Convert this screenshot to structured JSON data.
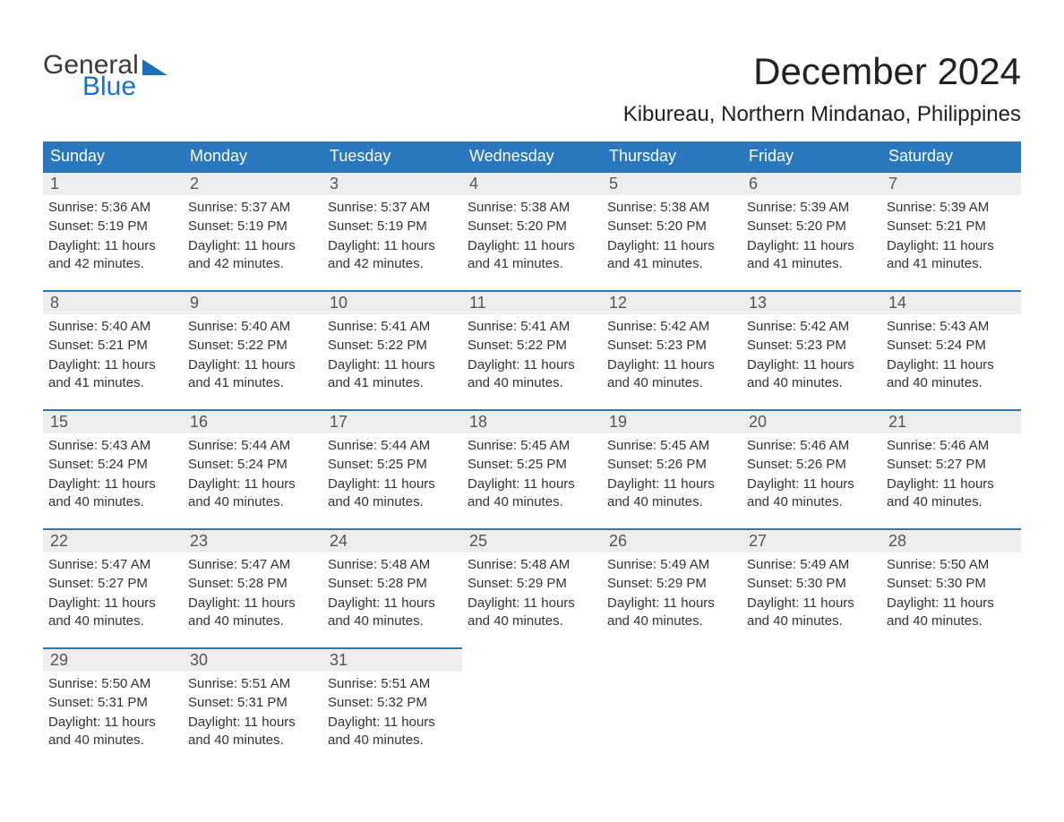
{
  "logo": {
    "text_general": "General",
    "text_blue": "Blue"
  },
  "title": "December 2024",
  "location": "Kibureau, Northern Mindanao, Philippines",
  "colors": {
    "header_bg": "#2a77bd",
    "header_text": "#ffffff",
    "daynum_bg": "#ededed",
    "border": "#2a77bd",
    "logo_blue": "#1c6fb8",
    "body_text": "#333333",
    "page_bg": "#ffffff"
  },
  "typography": {
    "title_fontsize": 42,
    "location_fontsize": 24,
    "weekday_fontsize": 18,
    "daynum_fontsize": 18,
    "cell_fontsize": 15,
    "logo_fontsize": 30
  },
  "layout": {
    "columns": 7,
    "rows": 5,
    "start_weekday": "Sunday"
  },
  "weekdays": [
    "Sunday",
    "Monday",
    "Tuesday",
    "Wednesday",
    "Thursday",
    "Friday",
    "Saturday"
  ],
  "labels": {
    "sunrise": "Sunrise:",
    "sunset": "Sunset:",
    "daylight": "Daylight:"
  },
  "days": [
    {
      "n": 1,
      "sunrise": "5:36 AM",
      "sunset": "5:19 PM",
      "daylight": "11 hours and 42 minutes."
    },
    {
      "n": 2,
      "sunrise": "5:37 AM",
      "sunset": "5:19 PM",
      "daylight": "11 hours and 42 minutes."
    },
    {
      "n": 3,
      "sunrise": "5:37 AM",
      "sunset": "5:19 PM",
      "daylight": "11 hours and 42 minutes."
    },
    {
      "n": 4,
      "sunrise": "5:38 AM",
      "sunset": "5:20 PM",
      "daylight": "11 hours and 41 minutes."
    },
    {
      "n": 5,
      "sunrise": "5:38 AM",
      "sunset": "5:20 PM",
      "daylight": "11 hours and 41 minutes."
    },
    {
      "n": 6,
      "sunrise": "5:39 AM",
      "sunset": "5:20 PM",
      "daylight": "11 hours and 41 minutes."
    },
    {
      "n": 7,
      "sunrise": "5:39 AM",
      "sunset": "5:21 PM",
      "daylight": "11 hours and 41 minutes."
    },
    {
      "n": 8,
      "sunrise": "5:40 AM",
      "sunset": "5:21 PM",
      "daylight": "11 hours and 41 minutes."
    },
    {
      "n": 9,
      "sunrise": "5:40 AM",
      "sunset": "5:22 PM",
      "daylight": "11 hours and 41 minutes."
    },
    {
      "n": 10,
      "sunrise": "5:41 AM",
      "sunset": "5:22 PM",
      "daylight": "11 hours and 41 minutes."
    },
    {
      "n": 11,
      "sunrise": "5:41 AM",
      "sunset": "5:22 PM",
      "daylight": "11 hours and 40 minutes."
    },
    {
      "n": 12,
      "sunrise": "5:42 AM",
      "sunset": "5:23 PM",
      "daylight": "11 hours and 40 minutes."
    },
    {
      "n": 13,
      "sunrise": "5:42 AM",
      "sunset": "5:23 PM",
      "daylight": "11 hours and 40 minutes."
    },
    {
      "n": 14,
      "sunrise": "5:43 AM",
      "sunset": "5:24 PM",
      "daylight": "11 hours and 40 minutes."
    },
    {
      "n": 15,
      "sunrise": "5:43 AM",
      "sunset": "5:24 PM",
      "daylight": "11 hours and 40 minutes."
    },
    {
      "n": 16,
      "sunrise": "5:44 AM",
      "sunset": "5:24 PM",
      "daylight": "11 hours and 40 minutes."
    },
    {
      "n": 17,
      "sunrise": "5:44 AM",
      "sunset": "5:25 PM",
      "daylight": "11 hours and 40 minutes."
    },
    {
      "n": 18,
      "sunrise": "5:45 AM",
      "sunset": "5:25 PM",
      "daylight": "11 hours and 40 minutes."
    },
    {
      "n": 19,
      "sunrise": "5:45 AM",
      "sunset": "5:26 PM",
      "daylight": "11 hours and 40 minutes."
    },
    {
      "n": 20,
      "sunrise": "5:46 AM",
      "sunset": "5:26 PM",
      "daylight": "11 hours and 40 minutes."
    },
    {
      "n": 21,
      "sunrise": "5:46 AM",
      "sunset": "5:27 PM",
      "daylight": "11 hours and 40 minutes."
    },
    {
      "n": 22,
      "sunrise": "5:47 AM",
      "sunset": "5:27 PM",
      "daylight": "11 hours and 40 minutes."
    },
    {
      "n": 23,
      "sunrise": "5:47 AM",
      "sunset": "5:28 PM",
      "daylight": "11 hours and 40 minutes."
    },
    {
      "n": 24,
      "sunrise": "5:48 AM",
      "sunset": "5:28 PM",
      "daylight": "11 hours and 40 minutes."
    },
    {
      "n": 25,
      "sunrise": "5:48 AM",
      "sunset": "5:29 PM",
      "daylight": "11 hours and 40 minutes."
    },
    {
      "n": 26,
      "sunrise": "5:49 AM",
      "sunset": "5:29 PM",
      "daylight": "11 hours and 40 minutes."
    },
    {
      "n": 27,
      "sunrise": "5:49 AM",
      "sunset": "5:30 PM",
      "daylight": "11 hours and 40 minutes."
    },
    {
      "n": 28,
      "sunrise": "5:50 AM",
      "sunset": "5:30 PM",
      "daylight": "11 hours and 40 minutes."
    },
    {
      "n": 29,
      "sunrise": "5:50 AM",
      "sunset": "5:31 PM",
      "daylight": "11 hours and 40 minutes."
    },
    {
      "n": 30,
      "sunrise": "5:51 AM",
      "sunset": "5:31 PM",
      "daylight": "11 hours and 40 minutes."
    },
    {
      "n": 31,
      "sunrise": "5:51 AM",
      "sunset": "5:32 PM",
      "daylight": "11 hours and 40 minutes."
    }
  ]
}
